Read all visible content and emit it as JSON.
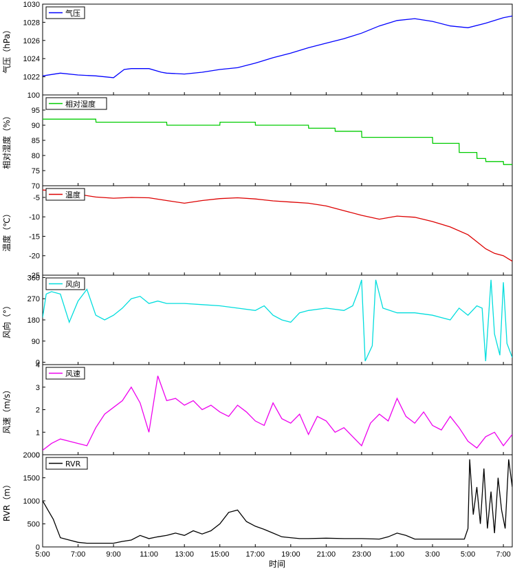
{
  "chart_data": {
    "type": "line",
    "xlabel": "时间",
    "x_ticks": [
      "5:00",
      "7:00",
      "9:00",
      "11:00",
      "13:00",
      "15:00",
      "17:00",
      "19:00",
      "21:00",
      "23:00",
      "1:00",
      "3:00",
      "5:00",
      "7:00"
    ],
    "x_range_hours": [
      5,
      31.5
    ],
    "panels": [
      {
        "name": "气压",
        "ylabel": "气压（hPa）",
        "color": "#0000ff",
        "ylim": [
          1020,
          1030
        ],
        "y_ticks": [
          1022,
          1024,
          1026,
          1028,
          1030
        ],
        "x": [
          5,
          6,
          7,
          8,
          9,
          9.6,
          10,
          11,
          11.7,
          12,
          13,
          14,
          15,
          16,
          17,
          18,
          19,
          20,
          21,
          22,
          23,
          24,
          25,
          26,
          27,
          28,
          29,
          30,
          31,
          31.5
        ],
        "values": [
          1022.1,
          1022.4,
          1022.2,
          1022.1,
          1021.9,
          1022.8,
          1022.9,
          1022.9,
          1022.5,
          1022.4,
          1022.3,
          1022.5,
          1022.8,
          1023.0,
          1023.5,
          1024.1,
          1024.6,
          1025.2,
          1025.7,
          1026.2,
          1026.8,
          1027.6,
          1028.2,
          1028.4,
          1028.1,
          1027.6,
          1027.4,
          1027.9,
          1028.5,
          1028.7
        ]
      },
      {
        "name": "相对湿度",
        "ylabel": "相对湿度（%）",
        "color": "#00cc00",
        "ylim": [
          70,
          100
        ],
        "y_ticks": [
          70,
          75,
          80,
          85,
          90,
          95,
          100
        ],
        "x": [
          5,
          8,
          8.01,
          12,
          12.01,
          15,
          15.01,
          17,
          17.01,
          19,
          19.01,
          20,
          20.01,
          21.5,
          21.51,
          23,
          23.01,
          25,
          25.01,
          27,
          27.01,
          28.5,
          28.51,
          29.5,
          29.51,
          30,
          30.01,
          30.5,
          30.51,
          31,
          31.01,
          31.5
        ],
        "values": [
          92,
          92,
          91,
          91,
          90,
          90,
          91,
          91,
          90,
          90,
          90,
          90,
          89,
          89,
          88,
          88,
          86,
          86,
          86,
          86,
          84,
          84,
          81,
          81,
          79,
          79,
          78,
          78,
          78,
          78,
          77,
          77
        ]
      },
      {
        "name": "温度",
        "ylabel": "温度（℃）",
        "color": "#dd0000",
        "ylim": [
          -25,
          -2
        ],
        "y_ticks": [
          -25,
          -20,
          -15,
          -10,
          -5
        ],
        "x": [
          5,
          6,
          7,
          8,
          9,
          10,
          11,
          12,
          13,
          14,
          15,
          16,
          17,
          18,
          19,
          20,
          21,
          22,
          23,
          24,
          25,
          26,
          27,
          28,
          29,
          29.5,
          30,
          30.5,
          31,
          31.5
        ],
        "values": [
          -3.1,
          -3.4,
          -4.2,
          -4.9,
          -5.2,
          -5.0,
          -5.1,
          -5.8,
          -6.5,
          -5.8,
          -5.3,
          -5.1,
          -5.4,
          -5.9,
          -6.2,
          -6.5,
          -7.2,
          -8.4,
          -9.6,
          -10.6,
          -9.8,
          -10.1,
          -11.2,
          -12.6,
          -14.6,
          -16.4,
          -18.2,
          -19.4,
          -20.0,
          -21.4
        ]
      },
      {
        "name": "风向",
        "ylabel": "风向（°）",
        "color": "#00dddd",
        "ylim": [
          -10,
          370
        ],
        "y_ticks": [
          0,
          90,
          180,
          270,
          360
        ],
        "x": [
          5,
          5.2,
          5.5,
          6,
          6.5,
          7,
          7.5,
          8,
          8.5,
          9,
          9.5,
          10,
          10.5,
          11,
          11.5,
          12,
          13,
          14,
          15,
          16,
          17,
          17.5,
          18,
          18.5,
          19,
          19.5,
          20,
          21,
          22,
          22.5,
          22.8,
          23,
          23.2,
          23.6,
          23.8,
          24.2,
          25,
          26,
          27,
          28,
          28.5,
          29,
          29.5,
          29.8,
          30,
          30.3,
          30.5,
          30.8,
          31,
          31.2,
          31.5
        ],
        "values": [
          190,
          290,
          300,
          290,
          170,
          260,
          310,
          200,
          180,
          200,
          230,
          270,
          280,
          250,
          260,
          250,
          250,
          245,
          240,
          230,
          220,
          240,
          200,
          180,
          170,
          210,
          220,
          230,
          220,
          240,
          300,
          350,
          5,
          70,
          350,
          230,
          210,
          210,
          200,
          180,
          230,
          200,
          240,
          230,
          5,
          350,
          120,
          30,
          340,
          80,
          20
        ]
      },
      {
        "name": "风速",
        "ylabel": "风速（m/s）",
        "color": "#ee00ee",
        "ylim": [
          0,
          4
        ],
        "y_ticks": [
          0,
          1,
          2,
          3,
          4
        ],
        "x": [
          5,
          5.5,
          6,
          6.5,
          7,
          7.5,
          8,
          8.5,
          9,
          9.5,
          10,
          10.5,
          11,
          11.5,
          12,
          12.5,
          13,
          13.5,
          14,
          14.5,
          15,
          15.5,
          16,
          16.5,
          17,
          17.5,
          18,
          18.5,
          19,
          19.5,
          20,
          20.5,
          21,
          21.5,
          22,
          22.5,
          23,
          23.5,
          24,
          24.5,
          25,
          25.5,
          26,
          26.5,
          27,
          27.5,
          28,
          28.5,
          29,
          29.5,
          30,
          30.5,
          31,
          31.5
        ],
        "values": [
          0.2,
          0.5,
          0.7,
          0.6,
          0.5,
          0.4,
          1.2,
          1.8,
          2.1,
          2.4,
          3.0,
          2.3,
          1.0,
          3.5,
          2.4,
          2.5,
          2.2,
          2.4,
          2.0,
          2.2,
          1.9,
          1.7,
          2.2,
          1.9,
          1.5,
          1.3,
          2.3,
          1.6,
          1.4,
          1.8,
          0.9,
          1.7,
          1.5,
          1.0,
          1.2,
          0.8,
          0.4,
          1.4,
          1.8,
          1.5,
          2.5,
          1.7,
          1.4,
          1.9,
          1.3,
          1.1,
          1.7,
          1.2,
          0.6,
          0.3,
          0.8,
          1.0,
          0.4,
          0.9
        ]
      },
      {
        "name": "RVR",
        "ylabel": "RVR（m）",
        "color": "#000000",
        "ylim": [
          0,
          2000
        ],
        "y_ticks": [
          0,
          500,
          1000,
          1500,
          2000
        ],
        "x": [
          5,
          5.3,
          5.6,
          5.8,
          6,
          6.5,
          7,
          7.5,
          8,
          8.5,
          9,
          9.5,
          10,
          10.5,
          11,
          11.5,
          12,
          12.5,
          13,
          13.5,
          14,
          14.5,
          15,
          15.5,
          16,
          16.5,
          17,
          17.5,
          18,
          18.5,
          19,
          19.5,
          20,
          21,
          22,
          23,
          24,
          24.5,
          25,
          25.5,
          26,
          27,
          28,
          28.8,
          29,
          29.1,
          29.3,
          29.5,
          29.7,
          29.9,
          30.1,
          30.3,
          30.5,
          30.7,
          30.9,
          31.1,
          31.3,
          31.5
        ],
        "values": [
          1000,
          800,
          600,
          400,
          200,
          150,
          100,
          80,
          80,
          80,
          80,
          120,
          150,
          250,
          180,
          220,
          250,
          300,
          250,
          350,
          280,
          350,
          500,
          750,
          800,
          550,
          450,
          380,
          300,
          220,
          200,
          180,
          180,
          190,
          180,
          180,
          170,
          220,
          300,
          250,
          170,
          170,
          170,
          170,
          400,
          1900,
          700,
          1300,
          500,
          1700,
          400,
          1200,
          300,
          1500,
          800,
          400,
          1900,
          1300
        ]
      }
    ]
  }
}
